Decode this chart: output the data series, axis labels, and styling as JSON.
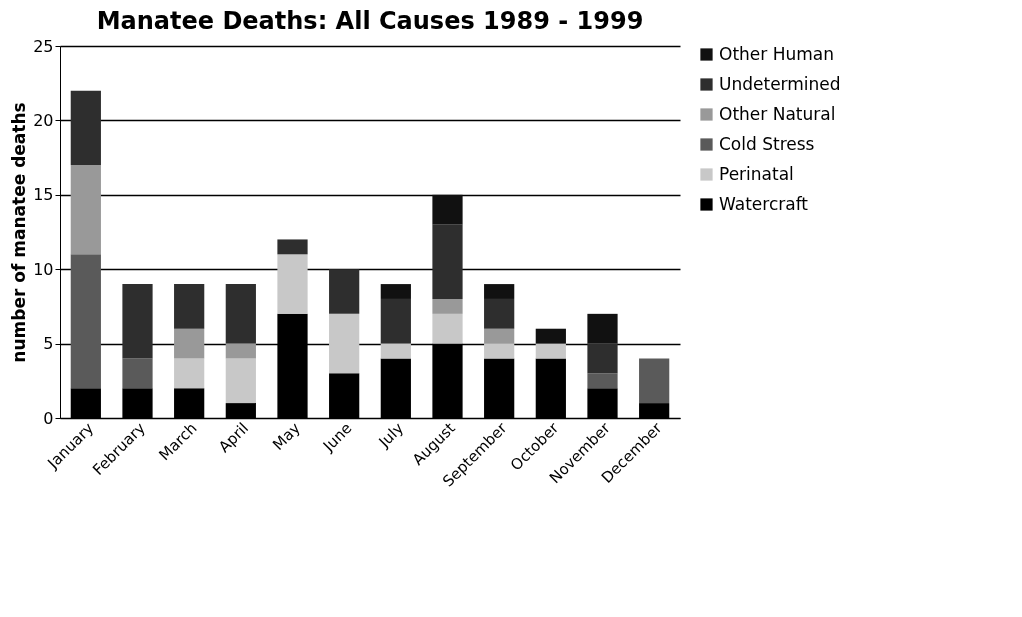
{
  "chart_data": {
    "type": "bar",
    "title": "Manatee Deaths: All Causes 1989 - 1999",
    "ylabel": "number of manatee deaths",
    "categories": [
      "January",
      "February",
      "March",
      "April",
      "May",
      "June",
      "July",
      "August",
      "September",
      "October",
      "November",
      "December"
    ],
    "stacked": true,
    "ylim": [
      0,
      25
    ],
    "yticks": [
      0,
      5,
      10,
      15,
      20,
      25
    ],
    "grid": "y",
    "legend": "right",
    "series": [
      {
        "name": "Watercraft",
        "color": "#000000",
        "values": [
          2,
          2,
          2,
          1,
          7,
          3,
          4,
          5,
          4,
          4,
          2,
          1
        ]
      },
      {
        "name": "Perinatal",
        "color": "#c8c8c8",
        "values": [
          0,
          0,
          2,
          3,
          4,
          4,
          1,
          2,
          1,
          1,
          0,
          0
        ]
      },
      {
        "name": "Cold Stress",
        "color": "#5a5a5a",
        "values": [
          9,
          2,
          0,
          0,
          0,
          0,
          0,
          0,
          0,
          0,
          1,
          3
        ]
      },
      {
        "name": "Other Natural",
        "color": "#999999",
        "values": [
          6,
          0,
          2,
          1,
          0,
          0,
          0,
          1,
          1,
          0,
          0,
          0
        ]
      },
      {
        "name": "Undetermined",
        "color": "#2e2e2e",
        "values": [
          5,
          5,
          3,
          4,
          1,
          3,
          3,
          5,
          2,
          0,
          2,
          0
        ]
      },
      {
        "name": "Other Human",
        "color": "#111111",
        "values": [
          0,
          0,
          0,
          0,
          0,
          0,
          1,
          2,
          1,
          1,
          2,
          0
        ]
      }
    ]
  }
}
